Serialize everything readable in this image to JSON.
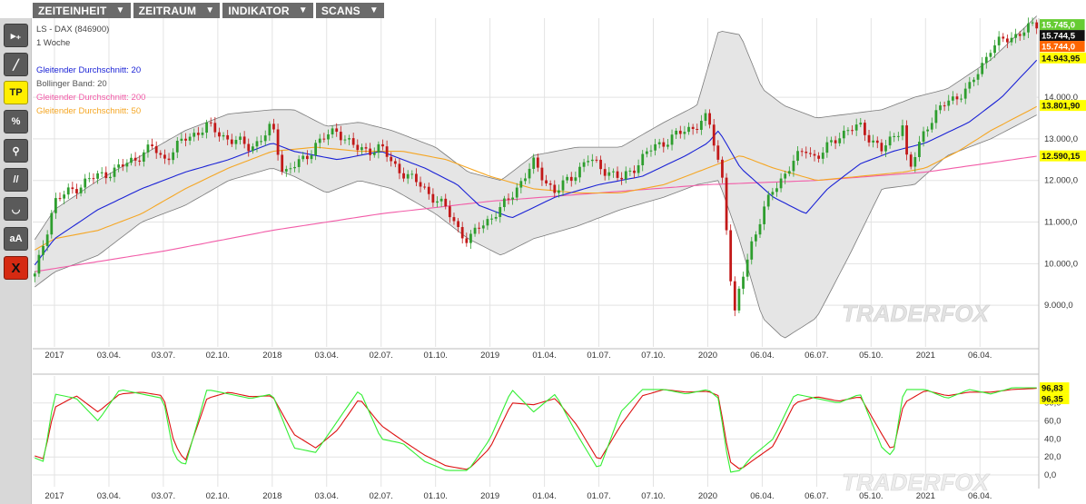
{
  "menu": {
    "items": [
      {
        "label": "ZEITEINHEIT",
        "caret": "▼"
      },
      {
        "label": "ZEITRAUM",
        "caret": "▼"
      },
      {
        "label": "INDIKATOR",
        "caret": "▼"
      },
      {
        "label": "SCANS",
        "caret": "▼"
      }
    ]
  },
  "toolbar": {
    "tools": [
      {
        "name": "cursor-add-tool",
        "label": "▸₊"
      },
      {
        "name": "line-tool",
        "label": "╱"
      },
      {
        "name": "tp-tool",
        "label": "TP"
      },
      {
        "name": "percent-tool",
        "label": "%"
      },
      {
        "name": "zoom-tool",
        "label": "⚲"
      },
      {
        "name": "parallel-lines-tool",
        "label": "//"
      },
      {
        "name": "curve-tool",
        "label": "◡"
      },
      {
        "name": "text-tool",
        "label": "aA"
      },
      {
        "name": "delete-tool",
        "label": "X"
      }
    ]
  },
  "colors": {
    "ma20": "#1a22d6",
    "bollinger": "#666666",
    "ma200": "#f25ca8",
    "ma50": "#f5a623",
    "candle_up": "#2e9e2e",
    "candle_down": "#c21818",
    "stoch_k": "#33ee33",
    "stoch_d": "#dd1111",
    "band_fill": "#e5e5e5",
    "badge_last": "#111111",
    "badge_ma50": "#ff6600",
    "badge_yellow": "#ffff00",
    "badge_green": "#66cc33"
  },
  "chart_data": [
    {
      "type": "candlestick",
      "title": "LS - DAX (846900)",
      "subtitle": "1 Woche",
      "legend": [
        {
          "name": "Gleitender Durchschnitt: 20",
          "color": "#1a22d6"
        },
        {
          "name": "Bollinger Band: 20",
          "color": "#666666"
        },
        {
          "name": "Gleitender Durchschnitt: 200",
          "color": "#f25ca8"
        },
        {
          "name": "Gleitender Durchschnitt: 50",
          "color": "#f5a623"
        }
      ],
      "legend_position": "top-left",
      "x_ticks": [
        "2017",
        "03.04.",
        "03.07.",
        "02.10.",
        "2018",
        "03.04.",
        "02.07.",
        "01.10.",
        "2019",
        "01.04.",
        "01.07.",
        "07.10.",
        "2020",
        "06.04.",
        "06.07.",
        "05.10.",
        "2021",
        "06.04."
      ],
      "x_tick_t": [
        0.0,
        0.25,
        0.5,
        0.75,
        1.0,
        1.25,
        1.5,
        1.75,
        2.0,
        2.25,
        2.5,
        2.75,
        3.0,
        3.25,
        3.5,
        3.75,
        4.0,
        4.25
      ],
      "y_ticks": [
        9000,
        10000,
        11000,
        12000,
        13000,
        14000
      ],
      "y_tick_labels": [
        "9.000,0",
        "10.000,0",
        "11.000,0",
        "12.000,0",
        "13.000,0",
        "14.000,0"
      ],
      "ylim": [
        8000,
        15900
      ],
      "xlim_t": [
        -0.1,
        4.52
      ],
      "grid": true,
      "price_badges": [
        {
          "label": "15.745,0",
          "value": 15745,
          "bg": "#66cc33",
          "fg": "#ffffff"
        },
        {
          "label": "15.744,5",
          "value": 15744.5,
          "bg": "#111111",
          "fg": "#ffffff"
        },
        {
          "label": "15.744,0",
          "value": 15744,
          "bg": "#ff6600",
          "fg": "#ffffff"
        },
        {
          "label": "14.943,95",
          "value": 14943.95,
          "bg": "#ffff00",
          "fg": "#111111"
        },
        {
          "label": "13.801,90",
          "value": 13801.9,
          "bg": "#ffff00",
          "fg": "#111111"
        },
        {
          "label": "12.590,15",
          "value": 12590.15,
          "bg": "#ffff00",
          "fg": "#111111"
        }
      ],
      "series": [
        {
          "name": "Close",
          "t": [
            -0.1,
            0.0,
            0.15,
            0.3,
            0.45,
            0.5,
            0.6,
            0.7,
            0.8,
            0.9,
            0.97,
            1.0,
            1.05,
            1.15,
            1.2,
            1.3,
            1.4,
            1.5,
            1.55,
            1.7,
            1.8,
            1.9,
            1.95,
            2.05,
            2.2,
            2.3,
            2.45,
            2.55,
            2.6,
            2.75,
            2.9,
            3.0,
            3.07,
            3.12,
            3.15,
            3.2,
            3.3,
            3.45,
            3.5,
            3.6,
            3.7,
            3.8,
            3.9,
            3.92,
            4.0,
            4.1,
            4.2,
            4.3,
            4.45,
            4.52
          ],
          "values": [
            9500,
            11500,
            12000,
            12300,
            12800,
            12500,
            13000,
            13300,
            13000,
            12800,
            13100,
            13300,
            12200,
            12500,
            12900,
            13200,
            12700,
            12800,
            12400,
            11800,
            11300,
            10500,
            10900,
            11300,
            12400,
            11700,
            12500,
            12200,
            12000,
            12800,
            13200,
            13500,
            12000,
            8600,
            9500,
            10500,
            11800,
            12800,
            12500,
            13100,
            13300,
            12700,
            13400,
            12100,
            13300,
            13900,
            14200,
            15200,
            15600,
            15745
          ]
        },
        {
          "name": "Gleitender Durchschnitt: 20",
          "t": [
            -0.1,
            0.0,
            0.2,
            0.4,
            0.6,
            0.8,
            1.0,
            1.1,
            1.3,
            1.5,
            1.7,
            1.85,
            1.95,
            2.1,
            2.3,
            2.5,
            2.7,
            2.9,
            3.0,
            3.05,
            3.15,
            3.3,
            3.45,
            3.55,
            3.7,
            3.85,
            4.0,
            4.2,
            4.35,
            4.52
          ],
          "values": [
            9900,
            10600,
            11300,
            11800,
            12200,
            12500,
            12900,
            12700,
            12500,
            12700,
            12300,
            11900,
            11400,
            11100,
            11600,
            11900,
            12100,
            12600,
            12900,
            13200,
            12300,
            11600,
            11200,
            11800,
            12400,
            12700,
            12900,
            13400,
            14000,
            14943.95
          ]
        },
        {
          "name": "Gleitender Durchschnitt: 50",
          "t": [
            -0.1,
            0.0,
            0.2,
            0.4,
            0.6,
            0.8,
            1.0,
            1.2,
            1.4,
            1.6,
            1.8,
            2.0,
            2.2,
            2.4,
            2.6,
            2.8,
            3.0,
            3.15,
            3.3,
            3.5,
            3.7,
            3.9,
            4.0,
            4.15,
            4.3,
            4.52
          ],
          "values": [
            10300,
            10600,
            10800,
            11200,
            11800,
            12300,
            12700,
            12800,
            12700,
            12700,
            12500,
            12100,
            11800,
            11700,
            11700,
            11900,
            12300,
            12600,
            12300,
            12000,
            12100,
            12200,
            12300,
            12700,
            13200,
            13801.9
          ]
        },
        {
          "name": "Gleitender Durchschnitt: 200",
          "t": [
            -0.1,
            0.5,
            1.0,
            1.5,
            2.0,
            2.5,
            3.0,
            3.5,
            4.0,
            4.52
          ],
          "values": [
            9800,
            10300,
            10800,
            11200,
            11500,
            11700,
            11900,
            12000,
            12200,
            12590.15
          ]
        },
        {
          "name": "Bollinger Upper",
          "t": [
            -0.1,
            0.0,
            0.2,
            0.4,
            0.6,
            0.8,
            1.0,
            1.1,
            1.25,
            1.4,
            1.55,
            1.75,
            1.9,
            2.05,
            2.2,
            2.4,
            2.6,
            2.8,
            2.95,
            3.05,
            3.15,
            3.25,
            3.35,
            3.5,
            3.65,
            3.8,
            3.95,
            4.1,
            4.3,
            4.52
          ],
          "values": [
            10500,
            11300,
            12000,
            12600,
            13200,
            13600,
            13700,
            13700,
            13300,
            13400,
            13200,
            12800,
            12200,
            12000,
            12600,
            12800,
            12800,
            13400,
            13800,
            15600,
            15500,
            14200,
            13800,
            13500,
            13600,
            13700,
            14000,
            14200,
            14900,
            16000
          ]
        },
        {
          "name": "Bollinger Lower",
          "t": [
            -0.1,
            0.0,
            0.2,
            0.4,
            0.6,
            0.8,
            1.0,
            1.1,
            1.25,
            1.4,
            1.55,
            1.75,
            1.9,
            2.05,
            2.2,
            2.4,
            2.6,
            2.8,
            2.95,
            3.05,
            3.15,
            3.25,
            3.35,
            3.5,
            3.65,
            3.8,
            3.95,
            4.1,
            4.3,
            4.52
          ],
          "values": [
            9400,
            9800,
            10200,
            11000,
            11400,
            12000,
            12300,
            12100,
            11700,
            12000,
            11800,
            11200,
            10600,
            10200,
            10600,
            10900,
            11300,
            11600,
            11900,
            12000,
            10500,
            8700,
            8200,
            8700,
            10200,
            11800,
            11900,
            12600,
            13000,
            13600
          ]
        }
      ]
    },
    {
      "type": "line",
      "title": "",
      "y_ticks": [
        0,
        20,
        40,
        60,
        80
      ],
      "y_tick_labels": [
        "0,0",
        "20,0",
        "40,0",
        "60,0",
        "80,0"
      ],
      "ylim": [
        -5,
        110
      ],
      "grid": true,
      "x_ticks": [
        "2017",
        "03.04.",
        "03.07.",
        "02.10.",
        "2018",
        "03.04.",
        "02.07.",
        "01.10.",
        "2019",
        "01.04.",
        "01.07.",
        "07.10.",
        "2020",
        "06.04.",
        "06.07.",
        "05.10.",
        "2021",
        "06.04."
      ],
      "price_badges": [
        {
          "label": "96,83",
          "value": 96.83,
          "bg": "#ffff00",
          "fg": "#111111"
        },
        {
          "label": "96,35",
          "value": 96.35,
          "bg": "#ffff00",
          "fg": "#111111"
        }
      ],
      "series": [
        {
          "name": "%K",
          "t": [
            -0.1,
            -0.05,
            0.0,
            0.1,
            0.2,
            0.3,
            0.4,
            0.5,
            0.55,
            0.6,
            0.7,
            0.8,
            0.9,
            1.0,
            1.1,
            1.2,
            1.3,
            1.4,
            1.5,
            1.6,
            1.7,
            1.8,
            1.9,
            2.0,
            2.1,
            2.2,
            2.3,
            2.4,
            2.5,
            2.6,
            2.7,
            2.8,
            2.9,
            3.0,
            3.05,
            3.1,
            3.15,
            3.2,
            3.3,
            3.4,
            3.5,
            3.6,
            3.7,
            3.8,
            3.85,
            3.9,
            4.0,
            4.1,
            4.2,
            4.3,
            4.4,
            4.52
          ],
          "values": [
            20,
            15,
            90,
            85,
            60,
            95,
            90,
            85,
            20,
            10,
            95,
            90,
            85,
            90,
            30,
            25,
            60,
            95,
            40,
            35,
            15,
            5,
            5,
            40,
            95,
            70,
            90,
            45,
            5,
            70,
            95,
            95,
            90,
            95,
            85,
            3,
            5,
            20,
            40,
            90,
            85,
            80,
            90,
            30,
            20,
            95,
            95,
            85,
            95,
            90,
            97,
            96.83
          ]
        },
        {
          "name": "%D",
          "t": [
            -0.1,
            -0.05,
            0.0,
            0.1,
            0.2,
            0.3,
            0.4,
            0.5,
            0.55,
            0.6,
            0.7,
            0.8,
            0.9,
            1.0,
            1.1,
            1.2,
            1.3,
            1.4,
            1.5,
            1.6,
            1.7,
            1.8,
            1.9,
            2.0,
            2.1,
            2.2,
            2.3,
            2.4,
            2.5,
            2.6,
            2.7,
            2.8,
            2.9,
            3.0,
            3.05,
            3.1,
            3.15,
            3.2,
            3.3,
            3.4,
            3.5,
            3.6,
            3.7,
            3.8,
            3.85,
            3.9,
            4.0,
            4.1,
            4.2,
            4.3,
            4.4,
            4.52
          ],
          "values": [
            22,
            18,
            75,
            88,
            70,
            90,
            92,
            88,
            35,
            15,
            85,
            92,
            87,
            88,
            45,
            30,
            50,
            85,
            55,
            38,
            22,
            10,
            6,
            30,
            80,
            78,
            85,
            55,
            15,
            55,
            88,
            95,
            92,
            93,
            88,
            15,
            6,
            15,
            32,
            80,
            87,
            82,
            87,
            45,
            25,
            80,
            94,
            88,
            92,
            92,
            95,
            96.35
          ]
        }
      ]
    }
  ],
  "watermark": "TRADERFOX"
}
